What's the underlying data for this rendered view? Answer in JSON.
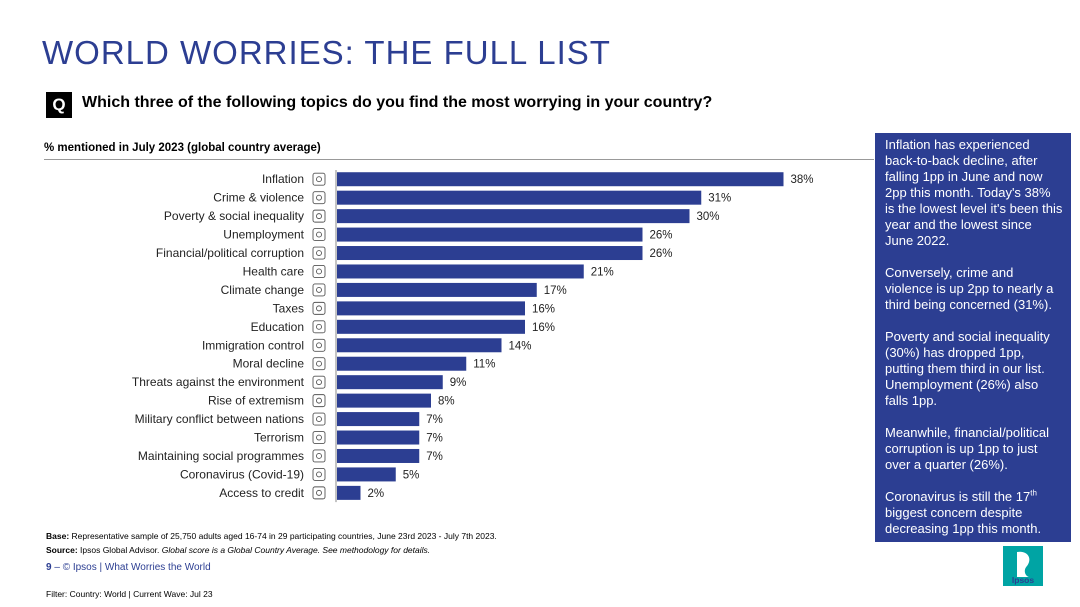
{
  "header": {
    "title": "WORLD WORRIES: THE FULL LIST",
    "q_badge": "Q",
    "question": "Which three of the following topics do you find the most worrying in your country?",
    "measure_label": "% mentioned in July 2023 (global country average)"
  },
  "chart_data": {
    "type": "bar",
    "orientation": "horizontal",
    "categories": [
      "Inflation",
      "Crime & violence",
      "Poverty & social inequality",
      "Unemployment",
      "Financial/political corruption",
      "Health care",
      "Climate change",
      "Taxes",
      "Education",
      "Immigration control",
      "Moral decline",
      "Threats against the environment",
      "Rise of extremism",
      "Military conflict between nations",
      "Terrorism",
      "Maintaining social programmes",
      "Coronavirus (Covid-19)",
      "Access to credit"
    ],
    "values": [
      38,
      31,
      30,
      26,
      26,
      21,
      17,
      16,
      16,
      14,
      11,
      9,
      8,
      7,
      7,
      7,
      5,
      2
    ],
    "value_labels": [
      "38%",
      "31%",
      "30%",
      "26%",
      "26%",
      "21%",
      "17%",
      "16%",
      "16%",
      "14%",
      "11%",
      "9%",
      "8%",
      "7%",
      "7%",
      "7%",
      "5%",
      "2%"
    ],
    "icons": [
      "chart-line-icon",
      "crossed-tools-icon",
      "money-bag-icon",
      "briefcase-icon",
      "coin-hand-icon",
      "heart-health-icon",
      "sun-icon",
      "receipt-icon",
      "graduation-cap-icon",
      "globe-icon",
      "scale-icon",
      "earth-icon",
      "fist-icon",
      "dove-icon",
      "person-icon",
      "people-icon",
      "warning-triangle-icon",
      "card-icon"
    ],
    "xlim": [
      0,
      40
    ],
    "bar_color": "#2c3e92",
    "grid": false
  },
  "sidebar": {
    "paragraphs": [
      "Inflation has experienced back-to-back decline, after falling 1pp in June and now 2pp this month. Today's 38% is the lowest level it's been this year and the lowest since June 2022.",
      "Conversely, crime and violence is up 2pp to nearly a third being concerned (31%).",
      "Poverty and social inequality (30%) has dropped 1pp, putting them third in our list. Unemployment (26%) also falls 1pp.",
      "Meanwhile, financial/political corruption is up 1pp to just over a quarter (26%)."
    ],
    "last_paragraph_pre": "Coronavirus is still the 17",
    "last_paragraph_sup": "th",
    "last_paragraph_post": " biggest concern despite decreasing 1pp this month."
  },
  "footnotes": {
    "base_label": "Base:",
    "base_text": " Representative sample of 25,750 adults aged 16-74 in 29 participating countries, June 23rd 2023 - July 7th 2023.",
    "source_label": "Source:",
    "source_text": " Ipsos Global Advisor.",
    "source_note": " Global score is a Global Country Average. See methodology for details."
  },
  "footer": {
    "page_number": "9",
    "page_sep": " – ",
    "copyright": " © Ipsos | What Worries the World",
    "filter": "Filter: Country: World | Current Wave: Jul 23",
    "logo_text": "Ipsos"
  },
  "colors": {
    "brand_blue": "#2c3e92",
    "logo_teal": "#00a4a4"
  }
}
